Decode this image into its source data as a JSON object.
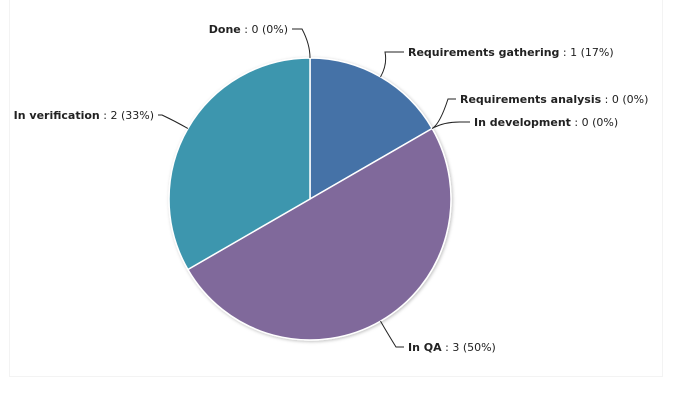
{
  "chart_data": {
    "type": "pie",
    "start_angle_deg": 0,
    "slices": [
      {
        "name": "Requirements gathering",
        "value": 1,
        "percent": "17%",
        "color": "#4572a7"
      },
      {
        "name": "Requirements analysis",
        "value": 0,
        "percent": "0%",
        "color": "#aa4643"
      },
      {
        "name": "In development",
        "value": 0,
        "percent": "0%",
        "color": "#89a54e"
      },
      {
        "name": "In QA",
        "value": 3,
        "percent": "50%",
        "color": "#80699b"
      },
      {
        "name": "In verification",
        "value": 2,
        "percent": "33%",
        "color": "#3d96ae"
      },
      {
        "name": "Done",
        "value": 0,
        "percent": "0%",
        "color": "#db843d"
      }
    ]
  }
}
